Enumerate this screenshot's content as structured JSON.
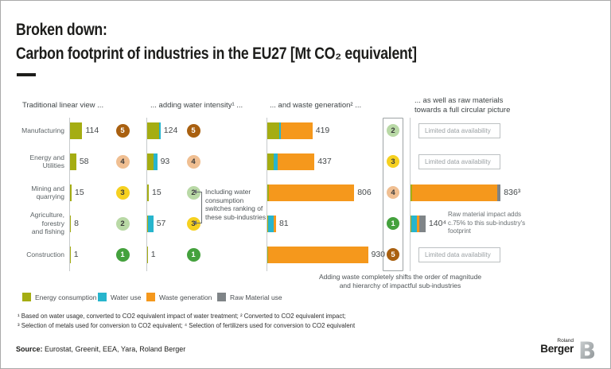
{
  "header": {
    "title_line1": "Broken down:",
    "title_line2": "Carbon footprint of industries in the EU27 [Mt CO₂ equivalent]"
  },
  "panel_headers": {
    "col1": "Traditional linear view ...",
    "col2": "... adding water intensity¹ ...",
    "col3": "... and waste generation² ...",
    "col4_line1": "... as well as raw materials",
    "col4_line2": "towards a full circular picture"
  },
  "row_labels": [
    [
      "Manufacturing"
    ],
    [
      "Energy and",
      "Utilities"
    ],
    [
      "Mining and",
      "quarrying"
    ],
    [
      "Agriculture,",
      "forestry",
      "and fishing"
    ],
    [
      "Construction"
    ]
  ],
  "annotations": {
    "water_switch": [
      "Including water",
      "consumption",
      "switches ranking of",
      "these sub-industries"
    ],
    "raw_material": [
      "Raw material impact adds",
      "c.75% to this sub-industry's",
      "footprint"
    ],
    "waste_note_line1": "Adding waste completely shifts the order of magnitude",
    "waste_note_line2": "and hierarchy of impactful sub-industries",
    "limited_data": "Limited data availability"
  },
  "legend": [
    {
      "name": "energy",
      "label": "Energy consumption",
      "color": "#a5ad12"
    },
    {
      "name": "water",
      "label": "Water use",
      "color": "#27b5cd"
    },
    {
      "name": "waste",
      "label": "Waste generation",
      "color": "#f5981c"
    },
    {
      "name": "raw",
      "label": "Raw Material use",
      "color": "#7f8487"
    }
  ],
  "footnotes": {
    "line1": "¹ Based on water usage, converted to CO2 equivalent impact of water treatment; ² Converted to CO2 equivalent impact;",
    "line2": "³ Selection of metals used for conversion to CO2 equivalent; ⁴ Selection of fertilizers used for conversion to CO2 equivalent"
  },
  "footer": {
    "source_label": "Source:",
    "source_text": " Eurostat, Greenit, EEA, Yara, Roland Berger",
    "logo_top": "Roland",
    "logo_bottom": "Berger"
  },
  "chart_data": {
    "type": "bar",
    "title": "Carbon footprint of industries in the EU27",
    "unit": "Mt CO2 equivalent",
    "categories": [
      "Manufacturing",
      "Energy and Utilities",
      "Mining and quarrying",
      "Agriculture, forestry and fishing",
      "Construction"
    ],
    "series_colors": {
      "energy": "#a5ad12",
      "water": "#27b5cd",
      "waste": "#f5981c",
      "raw": "#7f8487"
    },
    "rank_colors": {
      "1": "#44a13d",
      "2": "#b9d9a6",
      "3": "#f6d120",
      "4": "#f0bf92",
      "5": "#a96010"
    },
    "rank_dark_text": [
      2,
      3,
      4
    ],
    "panels": [
      {
        "id": "linear",
        "header": "Traditional linear view ...",
        "rows": [
          {
            "segments": {
              "energy": 114
            },
            "label": "114",
            "total": 114,
            "rank": 5
          },
          {
            "segments": {
              "energy": 58
            },
            "label": "58",
            "total": 58,
            "rank": 4
          },
          {
            "segments": {
              "energy": 15
            },
            "label": "15",
            "total": 15,
            "rank": 3
          },
          {
            "segments": {
              "energy": 8
            },
            "label": "8",
            "total": 8,
            "rank": 2
          },
          {
            "segments": {
              "energy": 1
            },
            "label": "1",
            "total": 1,
            "rank": 1
          }
        ]
      },
      {
        "id": "water",
        "header": "... adding water intensity¹ ...",
        "rows": [
          {
            "segments": {
              "energy": 114,
              "water": 10
            },
            "label": "124",
            "total": 124,
            "rank": 5
          },
          {
            "segments": {
              "energy": 58,
              "water": 35
            },
            "label": "93",
            "total": 93,
            "rank": 4
          },
          {
            "segments": {
              "energy": 15
            },
            "label": "15",
            "total": 15,
            "rank": 2
          },
          {
            "segments": {
              "energy": 8,
              "water": 49
            },
            "label": "57",
            "total": 57,
            "rank": 3
          },
          {
            "segments": {
              "energy": 1
            },
            "label": "1",
            "total": 1,
            "rank": 1
          }
        ]
      },
      {
        "id": "waste",
        "header": "... and waste generation² ...",
        "rows": [
          {
            "segments": {
              "energy": 114,
              "water": 10,
              "waste": 295
            },
            "label": "419",
            "total": 419,
            "rank": 2
          },
          {
            "segments": {
              "energy": 58,
              "water": 35,
              "waste": 344
            },
            "label": "437",
            "total": 437,
            "rank": 3
          },
          {
            "segments": {
              "energy": 15,
              "waste": 791
            },
            "label": "806",
            "total": 806,
            "rank": 4
          },
          {
            "segments": {
              "energy": 8,
              "water": 49,
              "waste": 24
            },
            "label": "81",
            "total": 81,
            "rank": 1
          },
          {
            "segments": {
              "energy": 1,
              "waste": 929
            },
            "label": "930",
            "total": 930,
            "rank": 5
          }
        ]
      },
      {
        "id": "raw",
        "header": "... as well as raw materials towards a full circular picture",
        "rows": [
          {
            "limited": true
          },
          {
            "limited": true
          },
          {
            "segments": {
              "energy": 15,
              "waste": 791,
              "raw": 30
            },
            "label": "836³",
            "total": 836
          },
          {
            "segments": {
              "energy": 8,
              "water": 49,
              "waste": 24,
              "raw": 59
            },
            "label": "140⁴",
            "total": 140
          },
          {
            "limited": true
          }
        ]
      }
    ]
  }
}
